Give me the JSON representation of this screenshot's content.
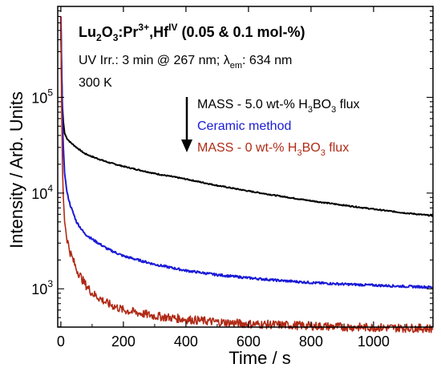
{
  "chart_data": {
    "type": "line",
    "title": {
      "host": "Lu",
      "host_sub1": "2",
      "host_mid": "O",
      "host_sub2": "3",
      "sep": ":",
      "ion1": "Pr",
      "ion1_sup": "3+",
      "comma": ",",
      "ion2": "Hf",
      "ion2_sup": "IV",
      "conc": " (0.05 & 0.1 mol-%)"
    },
    "conditions": {
      "line1_a": "UV Irr.: 3 min @ 267 nm; λ",
      "line1_sub": "em",
      "line1_b": ": 634 nm",
      "line2": "300 K"
    },
    "xlabel": "Time / s",
    "ylabel": "Intensity / Arb. Units",
    "xlim": [
      -10,
      1190
    ],
    "ylim_log10": [
      2.6,
      5.95
    ],
    "y_scale": "log",
    "x_ticks": [
      {
        "value": 0,
        "label": "0"
      },
      {
        "value": 200,
        "label": "200"
      },
      {
        "value": 400,
        "label": "400"
      },
      {
        "value": 600,
        "label": "600"
      },
      {
        "value": 800,
        "label": "800"
      },
      {
        "value": 1000,
        "label": "1000"
      }
    ],
    "y_ticks": [
      {
        "value": 1000,
        "base": "10",
        "exp": "3"
      },
      {
        "value": 10000,
        "base": "10",
        "exp": "4"
      },
      {
        "value": 100000,
        "base": "10",
        "exp": "5"
      }
    ],
    "legend": [
      {
        "prefix": "MASS - 5.0 wt-% H",
        "sub1": "3",
        "mid": "BO",
        "sub2": "3",
        "suffix": " flux",
        "color": "#000000"
      },
      {
        "prefix": "Ceramic method",
        "sub1": "",
        "mid": "",
        "sub2": "",
        "suffix": "",
        "color": "#1a1ad6"
      },
      {
        "prefix": "MASS - 0 wt-% H",
        "sub1": "3",
        "mid": "BO",
        "sub2": "3",
        "suffix": " flux",
        "color": "#b02a16"
      }
    ],
    "series": [
      {
        "name": "MASS - 5.0 wt-% H3BO3 flux",
        "color": "#000000",
        "x": [
          0,
          2,
          5,
          8,
          12,
          20,
          30,
          50,
          75,
          100,
          150,
          200,
          300,
          400,
          500,
          600,
          700,
          800,
          900,
          1000,
          1100,
          1190
        ],
        "y": [
          700000,
          200000,
          80000,
          55000,
          42000,
          37000,
          34000,
          30000,
          26000,
          24000,
          21000,
          19000,
          16000,
          14000,
          12000,
          10500,
          9300,
          8300,
          7500,
          6800,
          6200,
          5800
        ]
      },
      {
        "name": "Ceramic method",
        "color": "#1a1ad6",
        "x": [
          0,
          2,
          5,
          8,
          12,
          20,
          30,
          50,
          75,
          100,
          150,
          200,
          300,
          400,
          500,
          600,
          700,
          800,
          900,
          1000,
          1100,
          1190
        ],
        "y": [
          700000,
          250000,
          60000,
          30000,
          16000,
          10000,
          7500,
          5000,
          3800,
          3300,
          2600,
          2200,
          1800,
          1550,
          1400,
          1300,
          1220,
          1160,
          1120,
          1090,
          1060,
          1040
        ]
      },
      {
        "name": "MASS - 0 wt-% H3BO3 flux",
        "color": "#b02a16",
        "x": [
          0,
          2,
          5,
          8,
          12,
          20,
          30,
          50,
          75,
          100,
          150,
          200,
          300,
          400,
          500,
          600,
          700,
          800,
          900,
          1000,
          1100,
          1190
        ],
        "y": [
          700000,
          100000,
          20000,
          9000,
          5000,
          3300,
          2400,
          1600,
          1150,
          900,
          700,
          600,
          520,
          480,
          450,
          430,
          420,
          410,
          400,
          395,
          390,
          385
        ]
      }
    ],
    "annotation": "downward arrow beside legend"
  }
}
